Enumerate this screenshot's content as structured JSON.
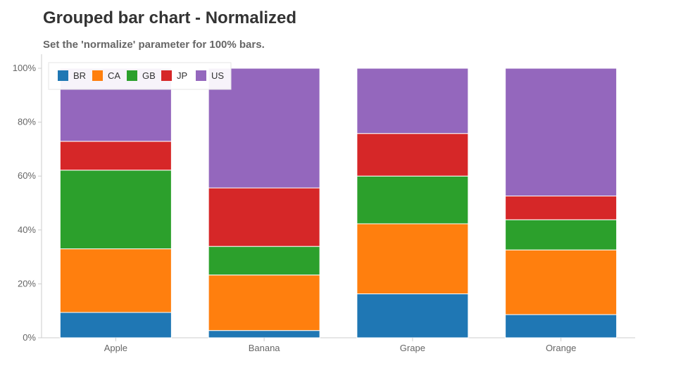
{
  "title": "Grouped bar chart - Normalized",
  "subtitle": "Set the 'normalize' parameter for 100% bars.",
  "chart_data": {
    "type": "bar",
    "stacked": true,
    "normalized": true,
    "categories": [
      "Apple",
      "Banana",
      "Grape",
      "Orange"
    ],
    "series": [
      {
        "name": "BR",
        "color": "#1f77b4",
        "values": [
          9.4,
          2.7,
          16.3,
          8.6
        ]
      },
      {
        "name": "CA",
        "color": "#ff7f0e",
        "values": [
          23.6,
          20.6,
          26.0,
          24.0
        ]
      },
      {
        "name": "GB",
        "color": "#2ca02c",
        "values": [
          29.2,
          10.6,
          17.7,
          11.2
        ]
      },
      {
        "name": "JP",
        "color": "#d62728",
        "values": [
          10.7,
          21.7,
          15.8,
          8.8
        ]
      },
      {
        "name": "US",
        "color": "#9467bd",
        "values": [
          27.1,
          44.4,
          24.2,
          47.4
        ]
      }
    ],
    "yticks": [
      "0%",
      "20%",
      "40%",
      "60%",
      "80%",
      "100%"
    ],
    "ylim": [
      0,
      100
    ],
    "legend_position": "top-left",
    "grid": false
  }
}
